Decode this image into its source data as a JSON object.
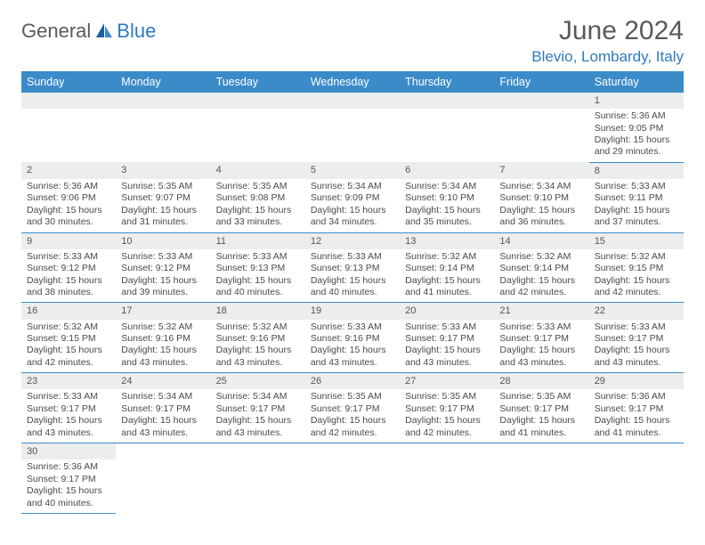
{
  "logo": {
    "part1": "General",
    "part2": "Blue"
  },
  "title": "June 2024",
  "location": "Blevio, Lombardy, Italy",
  "colors": {
    "header_bg": "#3b8bc9",
    "header_text": "#ffffff",
    "daynum_bg": "#eceded",
    "border": "#3b8bc9",
    "logo_gray": "#5a5a5a",
    "logo_blue": "#2f7bbf",
    "title_color": "#595959",
    "location_color": "#2f7bbf",
    "body_text": "#4a4a4a"
  },
  "weekdays": [
    "Sunday",
    "Monday",
    "Tuesday",
    "Wednesday",
    "Thursday",
    "Friday",
    "Saturday"
  ],
  "weeks": [
    [
      null,
      null,
      null,
      null,
      null,
      null,
      {
        "n": "1",
        "sr": "Sunrise: 5:36 AM",
        "ss": "Sunset: 9:05 PM",
        "d1": "Daylight: 15 hours",
        "d2": "and 29 minutes."
      }
    ],
    [
      {
        "n": "2",
        "sr": "Sunrise: 5:36 AM",
        "ss": "Sunset: 9:06 PM",
        "d1": "Daylight: 15 hours",
        "d2": "and 30 minutes."
      },
      {
        "n": "3",
        "sr": "Sunrise: 5:35 AM",
        "ss": "Sunset: 9:07 PM",
        "d1": "Daylight: 15 hours",
        "d2": "and 31 minutes."
      },
      {
        "n": "4",
        "sr": "Sunrise: 5:35 AM",
        "ss": "Sunset: 9:08 PM",
        "d1": "Daylight: 15 hours",
        "d2": "and 33 minutes."
      },
      {
        "n": "5",
        "sr": "Sunrise: 5:34 AM",
        "ss": "Sunset: 9:09 PM",
        "d1": "Daylight: 15 hours",
        "d2": "and 34 minutes."
      },
      {
        "n": "6",
        "sr": "Sunrise: 5:34 AM",
        "ss": "Sunset: 9:10 PM",
        "d1": "Daylight: 15 hours",
        "d2": "and 35 minutes."
      },
      {
        "n": "7",
        "sr": "Sunrise: 5:34 AM",
        "ss": "Sunset: 9:10 PM",
        "d1": "Daylight: 15 hours",
        "d2": "and 36 minutes."
      },
      {
        "n": "8",
        "sr": "Sunrise: 5:33 AM",
        "ss": "Sunset: 9:11 PM",
        "d1": "Daylight: 15 hours",
        "d2": "and 37 minutes."
      }
    ],
    [
      {
        "n": "9",
        "sr": "Sunrise: 5:33 AM",
        "ss": "Sunset: 9:12 PM",
        "d1": "Daylight: 15 hours",
        "d2": "and 38 minutes."
      },
      {
        "n": "10",
        "sr": "Sunrise: 5:33 AM",
        "ss": "Sunset: 9:12 PM",
        "d1": "Daylight: 15 hours",
        "d2": "and 39 minutes."
      },
      {
        "n": "11",
        "sr": "Sunrise: 5:33 AM",
        "ss": "Sunset: 9:13 PM",
        "d1": "Daylight: 15 hours",
        "d2": "and 40 minutes."
      },
      {
        "n": "12",
        "sr": "Sunrise: 5:33 AM",
        "ss": "Sunset: 9:13 PM",
        "d1": "Daylight: 15 hours",
        "d2": "and 40 minutes."
      },
      {
        "n": "13",
        "sr": "Sunrise: 5:32 AM",
        "ss": "Sunset: 9:14 PM",
        "d1": "Daylight: 15 hours",
        "d2": "and 41 minutes."
      },
      {
        "n": "14",
        "sr": "Sunrise: 5:32 AM",
        "ss": "Sunset: 9:14 PM",
        "d1": "Daylight: 15 hours",
        "d2": "and 42 minutes."
      },
      {
        "n": "15",
        "sr": "Sunrise: 5:32 AM",
        "ss": "Sunset: 9:15 PM",
        "d1": "Daylight: 15 hours",
        "d2": "and 42 minutes."
      }
    ],
    [
      {
        "n": "16",
        "sr": "Sunrise: 5:32 AM",
        "ss": "Sunset: 9:15 PM",
        "d1": "Daylight: 15 hours",
        "d2": "and 42 minutes."
      },
      {
        "n": "17",
        "sr": "Sunrise: 5:32 AM",
        "ss": "Sunset: 9:16 PM",
        "d1": "Daylight: 15 hours",
        "d2": "and 43 minutes."
      },
      {
        "n": "18",
        "sr": "Sunrise: 5:32 AM",
        "ss": "Sunset: 9:16 PM",
        "d1": "Daylight: 15 hours",
        "d2": "and 43 minutes."
      },
      {
        "n": "19",
        "sr": "Sunrise: 5:33 AM",
        "ss": "Sunset: 9:16 PM",
        "d1": "Daylight: 15 hours",
        "d2": "and 43 minutes."
      },
      {
        "n": "20",
        "sr": "Sunrise: 5:33 AM",
        "ss": "Sunset: 9:17 PM",
        "d1": "Daylight: 15 hours",
        "d2": "and 43 minutes."
      },
      {
        "n": "21",
        "sr": "Sunrise: 5:33 AM",
        "ss": "Sunset: 9:17 PM",
        "d1": "Daylight: 15 hours",
        "d2": "and 43 minutes."
      },
      {
        "n": "22",
        "sr": "Sunrise: 5:33 AM",
        "ss": "Sunset: 9:17 PM",
        "d1": "Daylight: 15 hours",
        "d2": "and 43 minutes."
      }
    ],
    [
      {
        "n": "23",
        "sr": "Sunrise: 5:33 AM",
        "ss": "Sunset: 9:17 PM",
        "d1": "Daylight: 15 hours",
        "d2": "and 43 minutes."
      },
      {
        "n": "24",
        "sr": "Sunrise: 5:34 AM",
        "ss": "Sunset: 9:17 PM",
        "d1": "Daylight: 15 hours",
        "d2": "and 43 minutes."
      },
      {
        "n": "25",
        "sr": "Sunrise: 5:34 AM",
        "ss": "Sunset: 9:17 PM",
        "d1": "Daylight: 15 hours",
        "d2": "and 43 minutes."
      },
      {
        "n": "26",
        "sr": "Sunrise: 5:35 AM",
        "ss": "Sunset: 9:17 PM",
        "d1": "Daylight: 15 hours",
        "d2": "and 42 minutes."
      },
      {
        "n": "27",
        "sr": "Sunrise: 5:35 AM",
        "ss": "Sunset: 9:17 PM",
        "d1": "Daylight: 15 hours",
        "d2": "and 42 minutes."
      },
      {
        "n": "28",
        "sr": "Sunrise: 5:35 AM",
        "ss": "Sunset: 9:17 PM",
        "d1": "Daylight: 15 hours",
        "d2": "and 41 minutes."
      },
      {
        "n": "29",
        "sr": "Sunrise: 5:36 AM",
        "ss": "Sunset: 9:17 PM",
        "d1": "Daylight: 15 hours",
        "d2": "and 41 minutes."
      }
    ],
    [
      {
        "n": "30",
        "sr": "Sunrise: 5:36 AM",
        "ss": "Sunset: 9:17 PM",
        "d1": "Daylight: 15 hours",
        "d2": "and 40 minutes."
      },
      null,
      null,
      null,
      null,
      null,
      null
    ]
  ]
}
